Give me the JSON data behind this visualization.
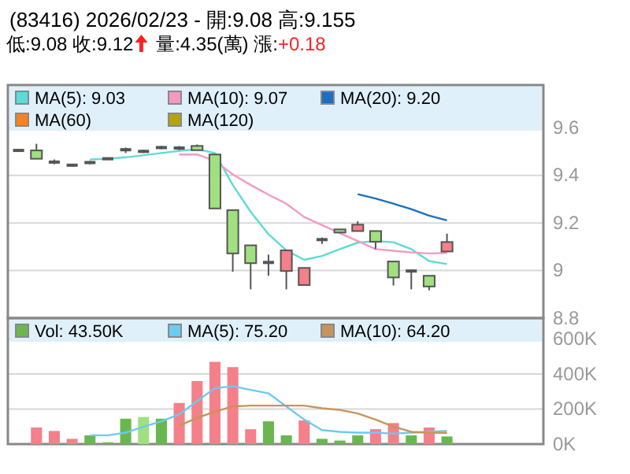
{
  "chart_data": [
    {
      "type": "candlestick",
      "title": "(83416) 2026/02/23 - 開:9.08 高:9.155",
      "subtitle": "低:9.08 收:9.12 量:4.35(萬) 漲:+0.18",
      "categories": [
        null,
        null,
        null,
        null,
        null,
        null,
        null,
        null,
        null,
        null,
        null,
        null,
        null,
        null,
        null,
        null,
        null,
        null,
        null,
        null,
        null,
        null,
        null,
        null,
        null
      ],
      "ohlc": [
        [
          9.505,
          9.505,
          9.505,
          9.505
        ],
        [
          9.505,
          9.533,
          9.47,
          9.47
        ],
        [
          9.456,
          9.467,
          9.447,
          9.456
        ],
        [
          9.443,
          9.449,
          9.436,
          9.443
        ],
        [
          9.454,
          9.461,
          9.447,
          9.454
        ],
        [
          9.47,
          9.47,
          9.47,
          9.47
        ],
        [
          9.508,
          9.517,
          9.494,
          9.508
        ],
        [
          9.501,
          9.508,
          9.494,
          9.501
        ],
        [
          9.517,
          9.524,
          9.51,
          9.517
        ],
        [
          9.515,
          9.524,
          9.506,
          9.515
        ],
        [
          9.524,
          9.53,
          9.506,
          9.506
        ],
        [
          9.488,
          9.488,
          9.261,
          9.261
        ],
        [
          9.254,
          9.254,
          8.995,
          9.072
        ],
        [
          9.106,
          9.106,
          8.921,
          9.031
        ],
        [
          9.034,
          9.067,
          8.978,
          9.034
        ],
        [
          8.998,
          9.085,
          8.921,
          9.085
        ],
        [
          8.939,
          9.011,
          8.939,
          9.011
        ],
        [
          9.13,
          9.139,
          9.112,
          9.13
        ],
        [
          9.173,
          9.173,
          9.16,
          9.16
        ],
        [
          9.166,
          9.207,
          9.166,
          9.193
        ],
        [
          9.166,
          9.166,
          9.09,
          9.121
        ],
        [
          9.038,
          9.038,
          8.937,
          8.971
        ],
        [
          8.998,
          9.004,
          8.921,
          8.998
        ],
        [
          8.978,
          8.978,
          8.917,
          8.933
        ],
        [
          9.08,
          9.155,
          9.08,
          9.12
        ]
      ],
      "colors": [
        "#555555",
        "#a0e080",
        "#555555",
        "#555555",
        "#555555",
        "#555555",
        "#555555",
        "#555555",
        "#555555",
        "#555555",
        "#a0e080",
        "#a0e080",
        "#a0e080",
        "#a0e080",
        "#555555",
        "#f4808a",
        "#f4808a",
        "#555555",
        "#a0e080",
        "#f4808a",
        "#a0e080",
        "#a0e080",
        "#555555",
        "#a0e080",
        "#f4808a"
      ],
      "series": [
        {
          "name": "MA(5): 9.03",
          "type": "line",
          "color": "#5ddbd8",
          "values": [
            null,
            null,
            null,
            null,
            9.467,
            9.47,
            9.476,
            9.485,
            9.494,
            9.503,
            9.51,
            9.494,
            9.36,
            9.247,
            9.153,
            9.085,
            9.045,
            9.061,
            9.09,
            9.117,
            9.124,
            9.119,
            9.09,
            9.04,
            9.027
          ]
        },
        {
          "name": "MA(10): 9.07",
          "type": "line",
          "color": "#f49ac1",
          "values": [
            null,
            null,
            null,
            null,
            null,
            null,
            null,
            null,
            null,
            9.488,
            9.488,
            9.461,
            9.404,
            9.36,
            9.319,
            9.281,
            9.225,
            9.191,
            9.157,
            9.124,
            9.09,
            9.083,
            9.076,
            9.072,
            9.074
          ]
        },
        {
          "name": "MA(20): 9.20",
          "type": "line",
          "color": "#1a6fbf",
          "values": [
            null,
            null,
            null,
            null,
            null,
            null,
            null,
            null,
            null,
            null,
            null,
            null,
            null,
            null,
            null,
            null,
            null,
            null,
            null,
            9.321,
            9.303,
            9.281,
            9.258,
            9.231,
            9.211
          ]
        },
        {
          "name": "MA(60)",
          "type": "line",
          "color": "#f58220",
          "values": [
            null,
            null,
            null,
            null,
            null,
            null,
            null,
            null,
            null,
            null,
            null,
            null,
            null,
            null,
            null,
            null,
            null,
            null,
            null,
            null,
            null,
            null,
            null,
            null,
            null
          ]
        },
        {
          "name": "MA(120)",
          "type": "line",
          "color": "#b5a40a",
          "values": [
            null,
            null,
            null,
            null,
            null,
            null,
            null,
            null,
            null,
            null,
            null,
            null,
            null,
            null,
            null,
            null,
            null,
            null,
            null,
            null,
            null,
            null,
            null,
            null,
            null
          ]
        }
      ],
      "ylim": [
        8.8,
        9.78
      ],
      "yticks": [
        8.8,
        9,
        9.2,
        9.4,
        9.6
      ],
      "grid": "y",
      "legend": "top",
      "tick_labels": "y"
    },
    {
      "type": "bar",
      "categories": [
        null,
        null,
        null,
        null,
        null,
        null,
        null,
        null,
        null,
        null,
        null,
        null,
        null,
        null,
        null,
        null,
        null,
        null,
        null,
        null,
        null,
        null,
        null,
        null,
        null
      ],
      "series": [
        {
          "name": "Vol: 43.50K",
          "color": "#6ab74f",
          "colors": [
            null,
            "#f4808a",
            "#f4808a",
            "#f4808a",
            "#6ab74f",
            "#6ab74f",
            "#6ab74f",
            "#a0e080",
            "#6ab74f",
            "#f4808a",
            "#f4808a",
            "#f4808a",
            "#f4808a",
            "#f4808a",
            "#6ab74f",
            "#6ab74f",
            "#f4808a",
            "#6ab74f",
            "#6ab74f",
            "#6ab74f",
            "#f4808a",
            "#f4808a",
            "#6ab74f",
            "#f4808a",
            "#6ab74f"
          ],
          "values": [
            null,
            95,
            75,
            30,
            50,
            10,
            145,
            155,
            145,
            235,
            360,
            470,
            440,
            85,
            130,
            50,
            135,
            30,
            20,
            50,
            85,
            120,
            50,
            95,
            43.5
          ]
        },
        {
          "name": "MA(5): 75.20",
          "type": "line",
          "color": "#6ccbf0",
          "values": [
            null,
            null,
            null,
            null,
            50,
            50,
            65,
            100,
            130,
            170,
            245,
            320,
            330,
            310,
            290,
            215,
            140,
            80,
            70,
            65,
            65,
            60,
            65,
            70,
            75.2
          ]
        },
        {
          "name": "MA(10): 64.20",
          "type": "line",
          "color": "#c8945a",
          "values": [
            null,
            null,
            null,
            null,
            null,
            null,
            null,
            null,
            null,
            105,
            150,
            185,
            215,
            220,
            220,
            220,
            220,
            205,
            195,
            175,
            140,
            100,
            70,
            65,
            64.2
          ]
        }
      ],
      "ylim": [
        0,
        720
      ],
      "yticks": [
        {
          "value": 0,
          "label": "0K"
        },
        {
          "value": 200,
          "label": "200K"
        },
        {
          "value": 400,
          "label": "400K"
        },
        {
          "value": 600,
          "label": "600K"
        }
      ],
      "grid": "y",
      "legend": "top",
      "tick_labels": "y"
    }
  ]
}
